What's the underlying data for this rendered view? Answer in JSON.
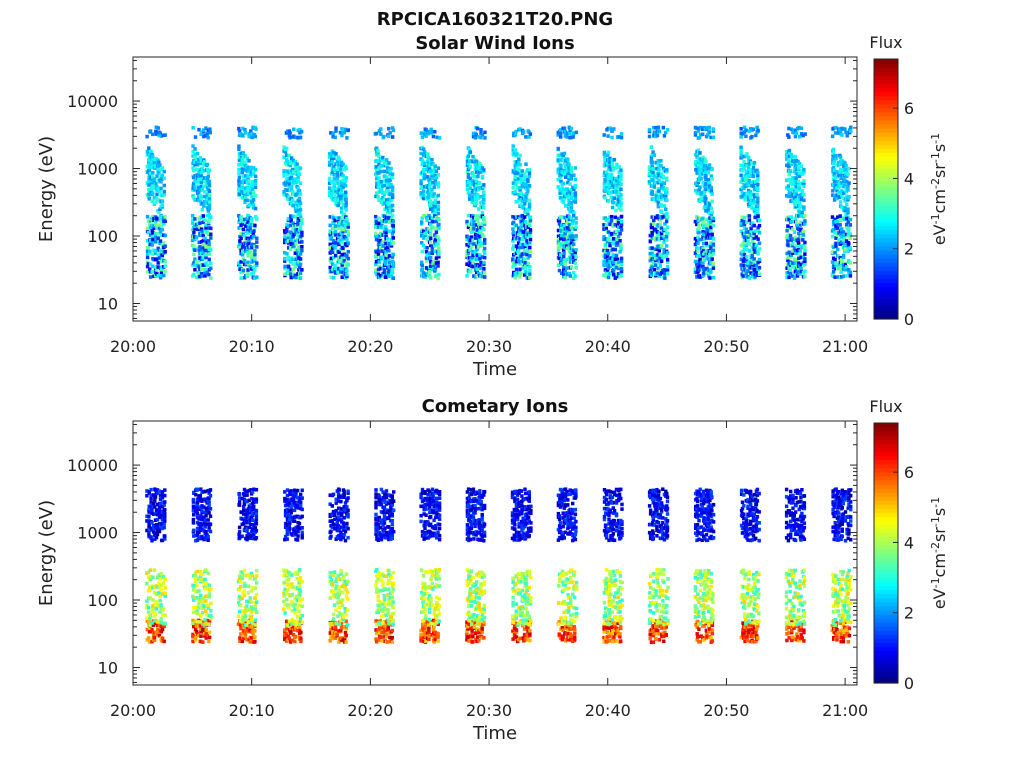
{
  "figure_title": "RPCICA160321T20.PNG",
  "colors": {
    "axis": "#262626",
    "background": "#ffffff"
  },
  "chart_data": [
    {
      "type": "heatmap",
      "title": "Solar Wind Ions",
      "xlabel": "Time",
      "ylabel": "Energy (eV)",
      "x_range": [
        "20:00",
        "21:01"
      ],
      "x_ticks": [
        "20:00",
        "20:10",
        "20:20",
        "20:30",
        "20:40",
        "20:50",
        "21:00"
      ],
      "y_scale": "log",
      "y_range": [
        5.5,
        45000
      ],
      "y_ticks": [
        "10",
        "100",
        "1000",
        "10000"
      ],
      "colorbar": {
        "label": "Flux",
        "unit_label": "eV-1cm-2sr-1s-1",
        "ticks": [
          "0",
          "2",
          "4",
          "6"
        ],
        "range": [
          0,
          7.4
        ],
        "colormap": "jet"
      },
      "sweep_period_min": 3.85,
      "features": [
        {
          "name": "solar wind protons",
          "energy_eV": [
            400,
            2000
          ],
          "flux": [
            1.8,
            3.2
          ]
        },
        {
          "name": "heavy ions",
          "energy_eV": [
            3000,
            4000
          ],
          "flux": [
            1.5,
            2.5
          ]
        },
        {
          "name": "low energy ions",
          "energy_eV": [
            25,
            200
          ],
          "flux": [
            0.6,
            3.8
          ]
        }
      ]
    },
    {
      "type": "heatmap",
      "title": "Cometary Ions",
      "xlabel": "Time",
      "ylabel": "Energy (eV)",
      "x_range": [
        "20:00",
        "21:01"
      ],
      "x_ticks": [
        "20:00",
        "20:10",
        "20:20",
        "20:30",
        "20:40",
        "20:50",
        "21:00"
      ],
      "y_scale": "log",
      "y_range": [
        5.5,
        45000
      ],
      "y_ticks": [
        "10",
        "100",
        "1000",
        "10000"
      ],
      "colorbar": {
        "label": "Flux",
        "unit_label": "eV-1cm-2sr-1s-1",
        "ticks": [
          "0",
          "2",
          "4",
          "6"
        ],
        "range": [
          0,
          7.4
        ],
        "colormap": "jet"
      },
      "sweep_period_min": 3.85,
      "features": [
        {
          "name": "cometary ions core",
          "energy_eV": [
            25,
            45
          ],
          "flux": [
            5.0,
            7.0
          ]
        },
        {
          "name": "cometary ions spread",
          "energy_eV": [
            45,
            250
          ],
          "flux": [
            3.0,
            5.0
          ]
        },
        {
          "name": "high energy sparse",
          "energy_eV": [
            800,
            4000
          ],
          "flux": [
            0.3,
            1.5
          ]
        }
      ]
    }
  ]
}
